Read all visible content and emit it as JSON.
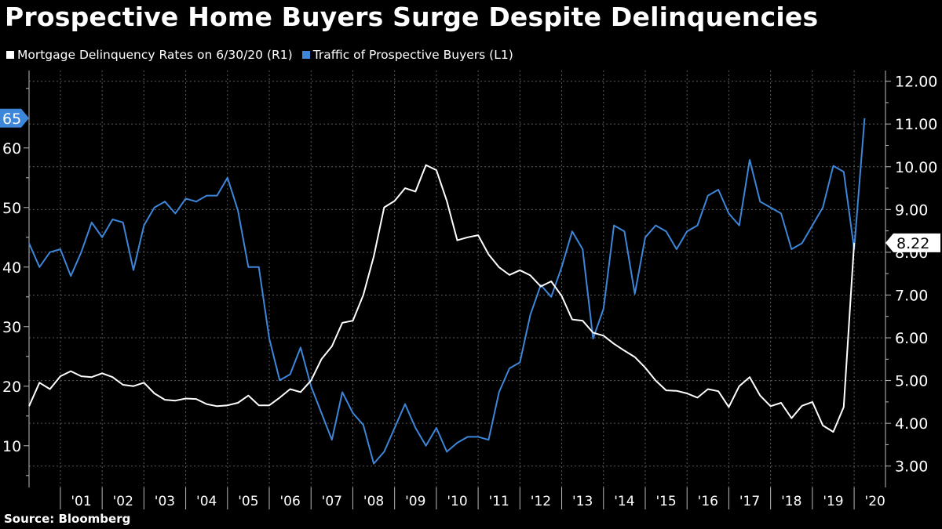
{
  "header": {
    "title": "Prospective Home Buyers Surge Despite Delinquencies",
    "source": "Source: Bloomberg"
  },
  "colors": {
    "background": "#000000",
    "white_series": "#ffffff",
    "blue_series": "#3d86d9",
    "grid": "#5a5a5a"
  },
  "chart_data": {
    "type": "line",
    "title": "Prospective Home Buyers Surge Despite Delinquencies",
    "legend": [
      {
        "name": "Mortgage Delinquency Rates on 6/30/20 (R1)",
        "color": "#ffffff"
      },
      {
        "name": "Traffic of Prospective Buyers (L1)",
        "color": "#3d86d9"
      }
    ],
    "x_tick_labels": [
      "'01",
      "'02",
      "'03",
      "'04",
      "'05",
      "'06",
      "'07",
      "'08",
      "'09",
      "'10",
      "'11",
      "'12",
      "'13",
      "'14",
      "'15",
      "'16",
      "'17",
      "'18",
      "'19",
      "'20"
    ],
    "x_range": [
      2000.25,
      2020.75
    ],
    "left_axis": {
      "label": "L1",
      "ylim": [
        3,
        73
      ],
      "ticks": [
        10,
        20,
        30,
        40,
        50,
        60
      ],
      "minor_step": 5
    },
    "right_axis": {
      "label": "R1",
      "ylim": [
        2.5,
        12.25
      ],
      "ticks": [
        "3.00",
        "4.00",
        "5.00",
        "6.00",
        "7.00",
        "8.00",
        "9.00",
        "10.00",
        "11.00",
        "12.00"
      ],
      "minor_step": 0.5
    },
    "series": [
      {
        "name": "Traffic of Prospective Buyers (L1)",
        "axis": "left",
        "color": "#3d86d9",
        "last_value_label": "65",
        "start": 2000.25,
        "step": 0.25,
        "values": [
          44,
          40,
          42.5,
          43,
          38.5,
          42.5,
          47.5,
          45,
          48,
          47.5,
          39.5,
          47,
          50,
          51,
          49,
          51.5,
          51,
          52,
          52,
          55,
          49.5,
          40,
          40,
          28,
          21,
          22,
          26.5,
          20,
          15.5,
          11,
          19,
          15.5,
          13.5,
          7,
          9,
          13,
          17,
          13,
          10,
          13,
          9,
          10.5,
          11.5,
          11.5,
          11,
          19,
          23,
          24,
          32,
          37,
          35,
          40,
          46,
          43,
          28,
          33,
          47,
          46,
          35.5,
          45,
          47,
          46,
          43,
          46,
          47,
          52,
          53,
          49,
          47,
          58,
          51,
          50,
          49,
          43,
          44,
          47,
          50,
          57,
          56,
          43,
          65
        ]
      },
      {
        "name": "Mortgage Delinquency Rates on 6/30/20 (R1)",
        "axis": "right",
        "color": "#ffffff",
        "last_value_label": "8.22",
        "start": 2000.25,
        "step": 0.25,
        "values": [
          4.4,
          4.95,
          4.8,
          5.1,
          5.22,
          5.1,
          5.08,
          5.17,
          5.08,
          4.9,
          4.87,
          4.95,
          4.7,
          4.55,
          4.53,
          4.58,
          4.57,
          4.45,
          4.4,
          4.42,
          4.48,
          4.65,
          4.42,
          4.42,
          4.6,
          4.8,
          4.73,
          5,
          5.5,
          5.8,
          6.35,
          6.4,
          7,
          7.9,
          9.05,
          9.2,
          9.5,
          9.42,
          10.04,
          9.92,
          9.2,
          8.28,
          8.35,
          8.4,
          7.95,
          7.65,
          7.47,
          7.58,
          7.46,
          7.2,
          7.32,
          6.98,
          6.43,
          6.4,
          6.12,
          6.05,
          5.86,
          5.7,
          5.55,
          5.3,
          5,
          4.77,
          4.76,
          4.7,
          4.6,
          4.8,
          4.75,
          4.38,
          4.87,
          5.08,
          4.65,
          4.4,
          4.48,
          4.12,
          4.41,
          4.5,
          3.95,
          3.8,
          4.38,
          8.22
        ]
      }
    ]
  }
}
